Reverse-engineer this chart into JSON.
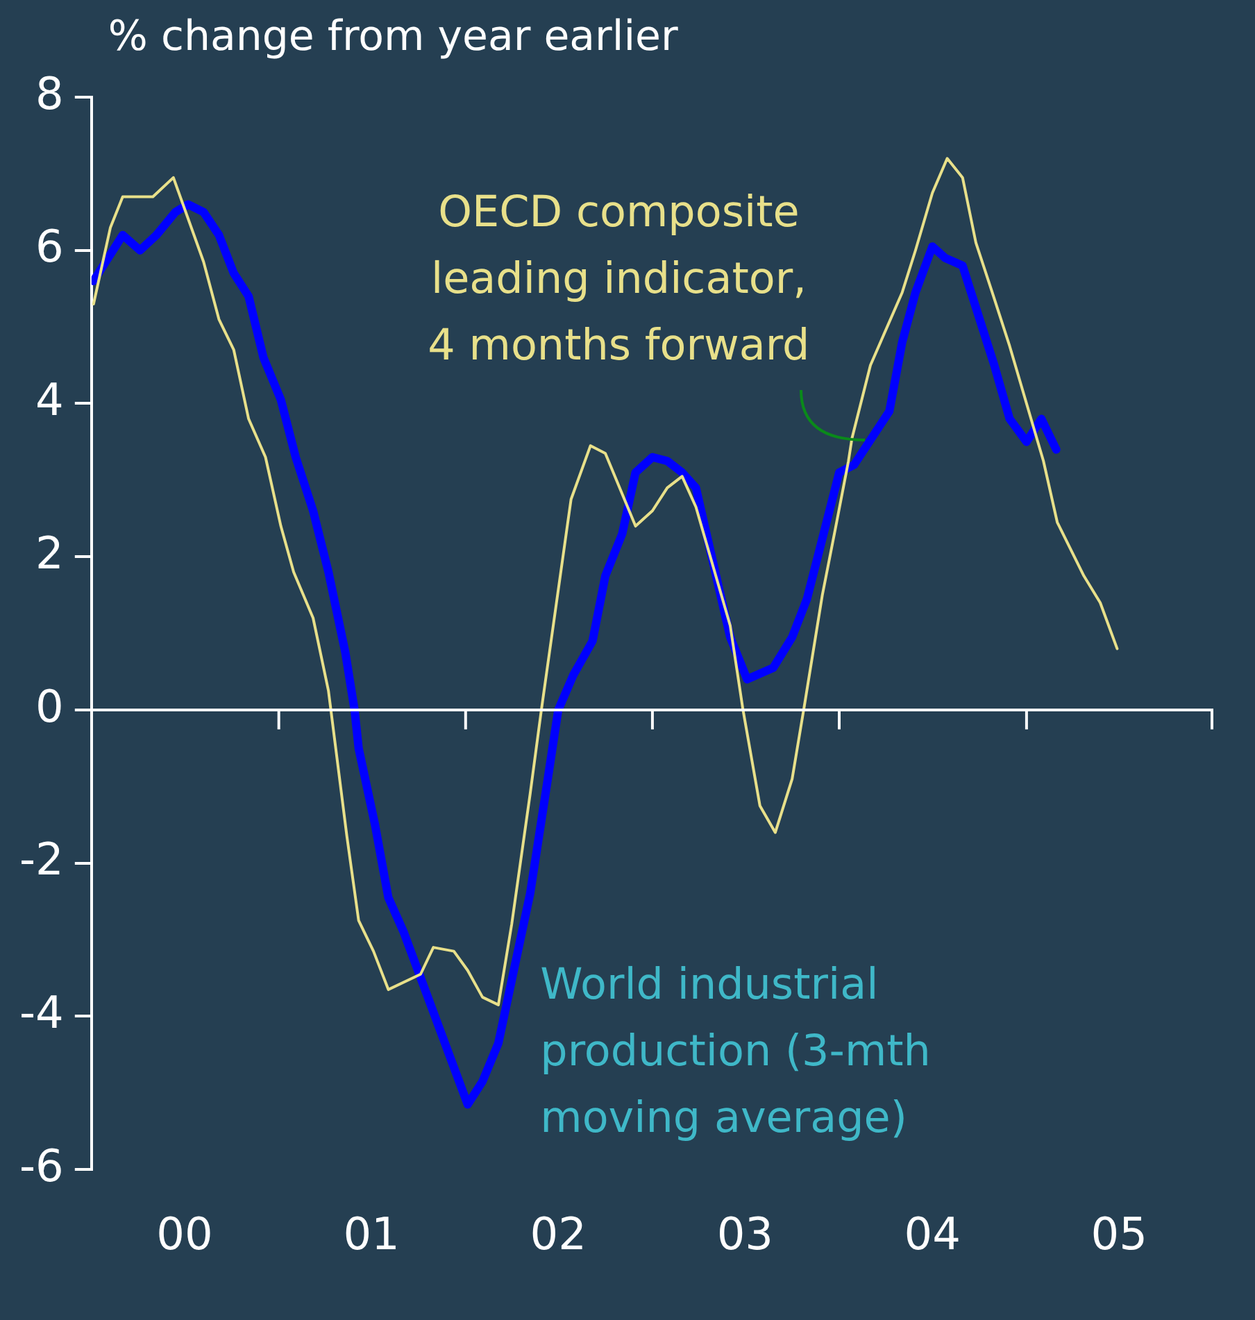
{
  "chart_data": {
    "type": "line",
    "ylabel": "% change from year earlier",
    "xlim": [
      "2000-01-01",
      "2006-01-01"
    ],
    "xticks": [
      {
        "value": "2000-07-01",
        "label": "00"
      },
      {
        "value": "2001-01-01",
        "label": null
      },
      {
        "value": "2001-07-01",
        "label": "01"
      },
      {
        "value": "2002-01-01",
        "label": null
      },
      {
        "value": "2002-07-01",
        "label": "02"
      },
      {
        "value": "2003-01-01",
        "label": null
      },
      {
        "value": "2003-07-01",
        "label": "03"
      },
      {
        "value": "2004-01-01",
        "label": null
      },
      {
        "value": "2004-07-01",
        "label": "04"
      },
      {
        "value": "2005-01-01",
        "label": null
      },
      {
        "value": "2005-07-01",
        "label": "05"
      },
      {
        "value": "2006-01-01",
        "label": null
      }
    ],
    "ylim": [
      -6,
      8
    ],
    "yticks": [
      -6,
      -4,
      -2,
      0,
      2,
      4,
      6,
      8
    ],
    "grid": false,
    "legend": false,
    "ref_lines": [
      {
        "axis": "y",
        "value": 0
      }
    ],
    "series": [
      {
        "name": "World industrial production (3-mth moving average)",
        "color": "#0000ff",
        "x": [
          "2000-01-05",
          "2000-03-02",
          "2000-04-05",
          "2000-05-07",
          "2000-06-13",
          "2000-07-08",
          "2000-08-07",
          "2000-09-06",
          "2000-10-05",
          "2000-11-03",
          "2000-12-02",
          "2001-01-05",
          "2001-02-03",
          "2001-03-09",
          "2001-04-08",
          "2001-05-11",
          "2001-05-29",
          "2001-06-06",
          "2001-07-08",
          "2001-08-03",
          "2001-09-02",
          "2002-01-05",
          "2002-02-03",
          "2002-03-06",
          "2002-05-07",
          "2002-06-06",
          "2002-07-01",
          "2002-07-30",
          "2002-09-06",
          "2002-10-01",
          "2002-11-03",
          "2002-11-29",
          "2003-01-01",
          "2003-01-30",
          "2003-02-28",
          "2003-03-27",
          "2003-06-02",
          "2003-07-05",
          "2003-08-25",
          "2003-10-01",
          "2003-10-30",
          "2004-01-01",
          "2004-01-30",
          "2004-04-08",
          "2004-05-03",
          "2004-05-29",
          "2004-07-01",
          "2004-07-26",
          "2004-08-29",
          "2004-10-30",
          "2004-11-29",
          "2005-01-01",
          "2005-01-30",
          "2005-02-28"
        ],
        "values": [
          5.6,
          6.2,
          6.0,
          6.2,
          6.5,
          6.6,
          6.5,
          6.2,
          5.7,
          5.4,
          4.6,
          4.05,
          3.3,
          2.6,
          1.8,
          0.75,
          0,
          -0.5,
          -1.5,
          -2.45,
          -2.9,
          -5.15,
          -4.85,
          -4.35,
          -2.4,
          -1.1,
          0,
          0.45,
          0.9,
          1.75,
          2.3,
          3.1,
          3.3,
          3.25,
          3.1,
          2.9,
          0.95,
          0.4,
          0.55,
          0.95,
          1.45,
          3.1,
          3.2,
          3.9,
          4.8,
          5.45,
          6.05,
          5.9,
          5.8,
          4.5,
          3.8,
          3.5,
          3.8,
          3.4
        ]
      },
      {
        "name": "OECD composite leading indicator, 4 months forward",
        "color": "#e8e08a",
        "x": [
          "2000-01-05",
          "2000-02-07",
          "2000-03-02",
          "2000-04-30",
          "2000-06-09",
          "2000-08-07",
          "2000-09-06",
          "2000-10-05",
          "2000-11-03",
          "2000-12-06",
          "2001-01-05",
          "2001-01-30",
          "2001-03-09",
          "2001-04-08",
          "2001-05-14",
          "2001-06-06",
          "2001-07-05",
          "2001-08-03",
          "2001-10-05",
          "2001-10-30",
          "2001-12-09",
          "2002-01-05",
          "2002-02-03",
          "2002-03-06",
          "2002-04-01",
          "2002-05-07",
          "2002-05-29",
          "2002-07-26",
          "2002-09-02",
          "2002-10-01",
          "2002-11-29",
          "2003-01-01",
          "2003-01-30",
          "2003-02-28",
          "2003-03-27",
          "2003-06-02",
          "2003-06-27",
          "2003-07-30",
          "2003-08-29",
          "2003-10-01",
          "2003-10-26",
          "2003-11-29",
          "2003-12-24",
          "2004-01-19",
          "2004-01-26",
          "2004-03-02",
          "2004-05-03",
          "2004-05-29",
          "2004-07-01",
          "2004-07-30",
          "2004-08-29",
          "2004-09-24",
          "2004-10-26",
          "2004-11-29",
          "2005-02-03",
          "2005-03-02",
          "2005-04-23",
          "2005-05-25",
          "2005-06-27"
        ],
        "values": [
          5.3,
          6.3,
          6.7,
          6.7,
          6.95,
          5.85,
          5.1,
          4.7,
          3.8,
          3.3,
          2.4,
          1.8,
          1.2,
          0.25,
          -1.65,
          -2.75,
          -3.15,
          -3.65,
          -3.45,
          -3.1,
          -3.15,
          -3.4,
          -3.75,
          -3.85,
          -2.8,
          -1.1,
          0,
          2.75,
          3.45,
          3.35,
          2.4,
          2.6,
          2.9,
          3.05,
          2.65,
          1.1,
          0,
          -1.25,
          -1.6,
          -0.9,
          0.1,
          1.5,
          2.35,
          3.25,
          3.55,
          4.5,
          5.45,
          6.0,
          6.75,
          7.2,
          6.95,
          6.1,
          5.45,
          4.75,
          3.25,
          2.45,
          1.75,
          1.4,
          0.8
        ]
      }
    ]
  }
}
